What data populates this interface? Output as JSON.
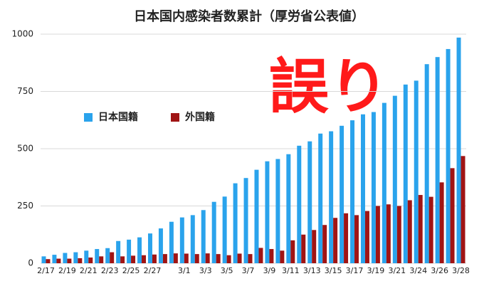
{
  "chart_data": {
    "type": "bar",
    "title": "日本国内感染者数累計（厚労省公表値）",
    "annotation": "誤り",
    "categories": [
      "2/17",
      null,
      "2/19",
      null,
      "2/21",
      null,
      "2/23",
      null,
      "2/25",
      null,
      "2/27",
      null,
      null,
      "3/1",
      null,
      "3/3",
      null,
      "3/5",
      null,
      "3/7",
      null,
      "3/9",
      null,
      "3/11",
      null,
      "3/13",
      null,
      "3/15",
      null,
      "3/17",
      null,
      "3/19",
      null,
      "3/21",
      null,
      "3/24",
      null,
      "3/26",
      null,
      "3/28"
    ],
    "series": [
      {
        "name": "日本国籍",
        "color": "#2aa3ec",
        "values": [
          30,
          37,
          45,
          48,
          55,
          62,
          66,
          97,
          103,
          113,
          130,
          152,
          181,
          200,
          210,
          232,
          268,
          291,
          349,
          372,
          408,
          445,
          455,
          476,
          513,
          532,
          566,
          576,
          600,
          624,
          650,
          660,
          700,
          731,
          780,
          797,
          869,
          900,
          935,
          985
        ]
      },
      {
        "name": "外国籍",
        "color": "#a01414",
        "values": [
          18,
          20,
          20,
          22,
          25,
          30,
          48,
          30,
          33,
          35,
          38,
          40,
          43,
          42,
          40,
          43,
          40,
          35,
          42,
          40,
          67,
          62,
          55,
          100,
          125,
          145,
          167,
          198,
          218,
          210,
          228,
          250,
          257,
          250,
          275,
          298,
          290,
          353,
          415,
          468
        ]
      }
    ],
    "ylim": [
      0,
      1000
    ],
    "yticks": [
      0,
      250,
      500,
      750,
      1000
    ],
    "grid": true
  }
}
